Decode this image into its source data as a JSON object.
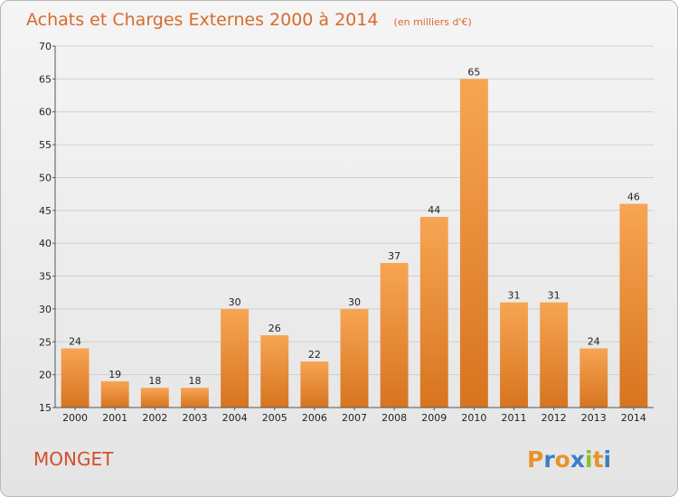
{
  "chart_data": {
    "type": "bar",
    "title": "Achats et Charges Externes 2000 à 2014",
    "subtitle": "(en milliers d'€)",
    "categories": [
      "2000",
      "2001",
      "2002",
      "2003",
      "2004",
      "2005",
      "2006",
      "2007",
      "2008",
      "2009",
      "2010",
      "2011",
      "2012",
      "2013",
      "2014"
    ],
    "values": [
      24,
      19,
      18,
      18,
      30,
      26,
      22,
      30,
      37,
      44,
      65,
      31,
      31,
      24,
      46
    ],
    "data_labels": [
      "24",
      "19",
      "18",
      "18",
      "30",
      "26",
      "22",
      "30",
      "37",
      "44",
      "65",
      "31",
      "31",
      "24",
      "46"
    ],
    "ylim": [
      15,
      70
    ],
    "yticks": [
      "15",
      "20",
      "25",
      "30",
      "35",
      "40",
      "45",
      "50",
      "55",
      "60",
      "65",
      "70"
    ],
    "grid": true,
    "bar_color_top": "#f7a553",
    "bar_color_bottom": "#d7741f"
  },
  "footer": {
    "commune": "MONGET",
    "logo_letters": [
      "P",
      "r",
      "o",
      "x",
      "i",
      "t",
      "i"
    ],
    "logo_colors": [
      "#e8932a",
      "#3a7fc4",
      "#e8932a",
      "#3a7fc4",
      "#8cbf2f",
      "#e8932a",
      "#3a7fc4"
    ]
  }
}
